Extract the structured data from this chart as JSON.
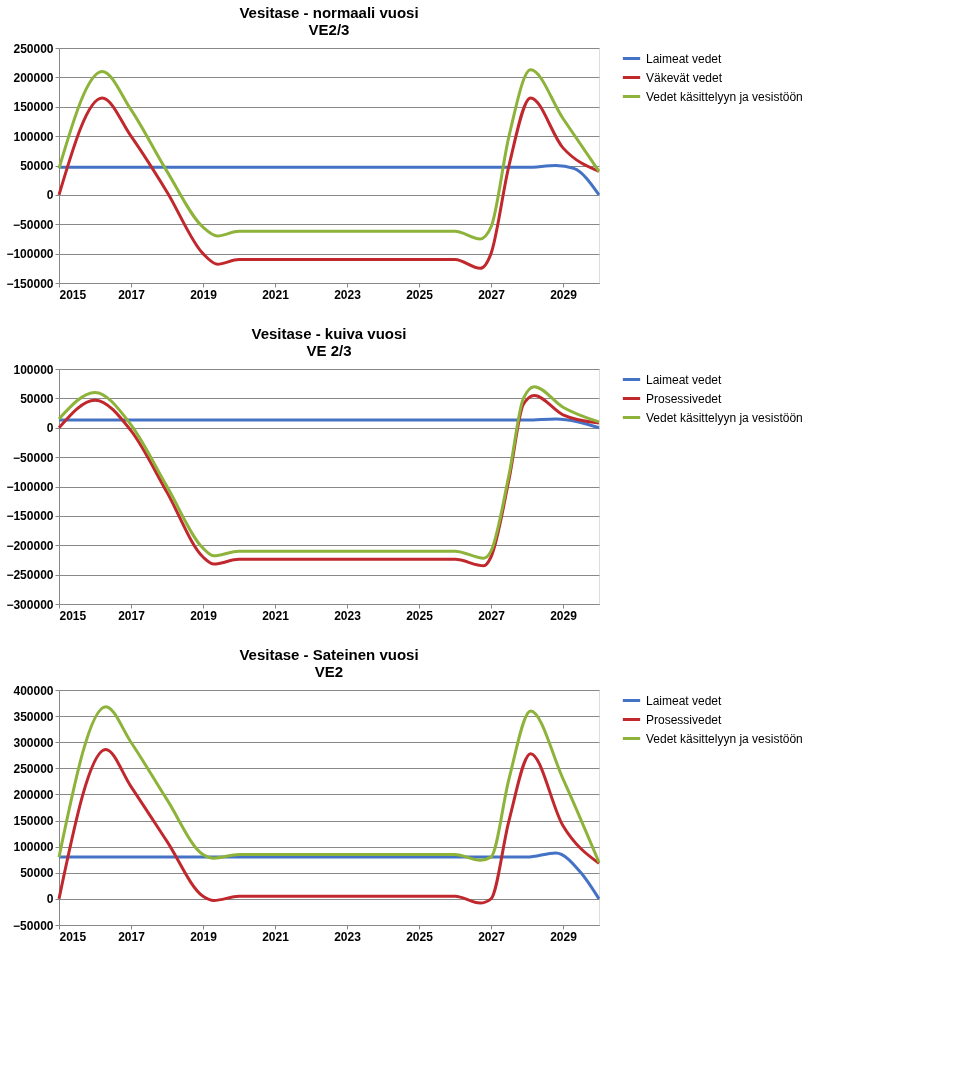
{
  "chart_data": [
    {
      "type": "line",
      "title": "Vesitase - normaali vuosi\nVE2/3",
      "xlim": [
        2015,
        2030
      ],
      "xticks": [
        2015,
        2017,
        2019,
        2021,
        2023,
        2025,
        2027,
        2029
      ],
      "ylim": [
        -150000,
        250000
      ],
      "yticks": [
        -150000,
        -100000,
        -50000,
        0,
        50000,
        100000,
        150000,
        200000,
        250000
      ],
      "grid": "y",
      "legend": "right",
      "marker": "none",
      "line_style": "solid",
      "series": [
        {
          "name": "Laimeat vedet",
          "color": "#4472c4",
          "x": [
            2015,
            2017,
            2019,
            2021,
            2023,
            2025,
            2027,
            2028,
            2028.8,
            2029.3,
            2030
          ],
          "values": [
            47000,
            47000,
            47000,
            47000,
            47000,
            47000,
            47000,
            47000,
            50000,
            45000,
            0
          ]
        },
        {
          "name": "Väkevät vedet",
          "color": "#c0282d",
          "x": [
            2015,
            2016.2,
            2017,
            2018,
            2019,
            2019.4,
            2020,
            2026,
            2026.7,
            2027,
            2027.5,
            2028.1,
            2029,
            2030
          ],
          "values": [
            0,
            165000,
            100000,
            5000,
            -100000,
            -118000,
            -110000,
            -110000,
            -125000,
            -100000,
            50000,
            165000,
            80000,
            40000
          ]
        },
        {
          "name": "Vedet käsittelyyn ja vesistöön",
          "color": "#8db33a",
          "x": [
            2015,
            2016.2,
            2017,
            2018,
            2019,
            2019.4,
            2020,
            2026,
            2026.7,
            2027,
            2027.5,
            2028.1,
            2029,
            2030
          ],
          "values": [
            45000,
            210000,
            145000,
            40000,
            -55000,
            -70000,
            -62000,
            -62000,
            -75000,
            -55000,
            100000,
            213000,
            130000,
            40000
          ]
        }
      ]
    },
    {
      "type": "line",
      "title": "Vesitase - kuiva vuosi\nVE 2/3",
      "xlim": [
        2015,
        2030
      ],
      "xticks": [
        2015,
        2017,
        2019,
        2021,
        2023,
        2025,
        2027,
        2029
      ],
      "ylim": [
        -300000,
        100000
      ],
      "yticks": [
        -300000,
        -250000,
        -200000,
        -150000,
        -100000,
        -50000,
        0,
        50000,
        100000
      ],
      "grid": "y",
      "legend": "right",
      "marker": "none",
      "line_style": "solid",
      "series": [
        {
          "name": "Laimeat vedet",
          "color": "#4472c4",
          "x": [
            2015,
            2017,
            2019,
            2021,
            2023,
            2025,
            2027,
            2028,
            2028.8,
            2030
          ],
          "values": [
            13000,
            13000,
            13000,
            13000,
            13000,
            13000,
            13000,
            13000,
            15000,
            0
          ]
        },
        {
          "name": "Prosessivedet",
          "color": "#c0282d",
          "x": [
            2015,
            2016,
            2017,
            2018,
            2019,
            2019.3,
            2020,
            2026,
            2026.8,
            2027,
            2027.5,
            2027.9,
            2028.2,
            2029,
            2030
          ],
          "values": [
            0,
            47000,
            -5000,
            -110000,
            -220000,
            -232000,
            -224000,
            -224000,
            -235000,
            -220000,
            -88000,
            40000,
            55000,
            22000,
            8000
          ]
        },
        {
          "name": "Vedet käsittelyyn ja vesistöön",
          "color": "#8db33a",
          "x": [
            2015,
            2016,
            2017,
            2018,
            2019,
            2019.3,
            2020,
            2026,
            2026.8,
            2027,
            2027.5,
            2027.9,
            2028.2,
            2029,
            2030
          ],
          "values": [
            15000,
            60000,
            5000,
            -100000,
            -205000,
            -218000,
            -210000,
            -210000,
            -222000,
            -210000,
            -80000,
            50000,
            70000,
            35000,
            10000
          ]
        }
      ]
    },
    {
      "type": "line",
      "title": "Vesitase - Sateinen vuosi\nVE2",
      "xlim": [
        2015,
        2030
      ],
      "xticks": [
        2015,
        2017,
        2019,
        2021,
        2023,
        2025,
        2027,
        2029
      ],
      "ylim": [
        -50000,
        400000
      ],
      "yticks": [
        -50000,
        0,
        50000,
        100000,
        150000,
        200000,
        250000,
        300000,
        350000,
        400000
      ],
      "grid": "y",
      "legend": "right",
      "marker": "none",
      "line_style": "solid",
      "series": [
        {
          "name": "Laimeat vedet",
          "color": "#4472c4",
          "x": [
            2015,
            2017,
            2019,
            2021,
            2023,
            2025,
            2027,
            2028,
            2028.8,
            2029.5,
            2030
          ],
          "values": [
            80000,
            80000,
            80000,
            80000,
            80000,
            80000,
            80000,
            80000,
            88000,
            50000,
            0
          ]
        },
        {
          "name": "Prosessivedet",
          "color": "#c0282d",
          "x": [
            2015,
            2016.3,
            2017,
            2018,
            2019,
            2019.3,
            2020,
            2026,
            2026.7,
            2027,
            2027.5,
            2028.1,
            2029,
            2030
          ],
          "values": [
            0,
            286000,
            215000,
            110000,
            5000,
            -3000,
            5000,
            5000,
            -8000,
            0,
            150000,
            278000,
            140000,
            68000
          ]
        },
        {
          "name": "Vedet käsittelyyn ja vesistöön",
          "color": "#8db33a",
          "x": [
            2015,
            2016.3,
            2017,
            2018,
            2019,
            2019.3,
            2020,
            2026,
            2026.7,
            2027,
            2027.5,
            2028.1,
            2029,
            2030
          ],
          "values": [
            80000,
            368000,
            300000,
            190000,
            85000,
            78000,
            85000,
            85000,
            74000,
            80000,
            230000,
            360000,
            230000,
            70000
          ]
        }
      ]
    }
  ]
}
